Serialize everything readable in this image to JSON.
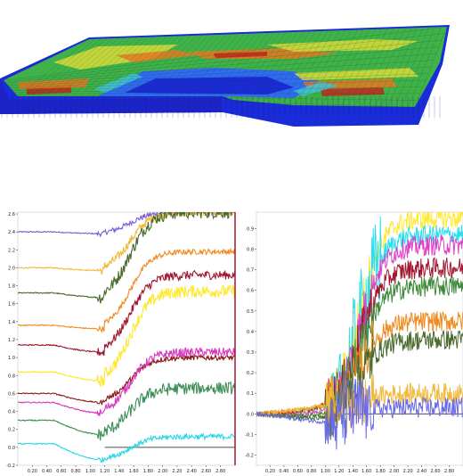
{
  "model_view": {
    "colors": {
      "deep": "#1a2bd8",
      "low": "#2f6cf0",
      "cyan": "#3fc3d8",
      "green": "#3fb24a",
      "yellow": "#d7d93a",
      "orange": "#e07a22",
      "red": "#c0281e"
    }
  },
  "chart_data": [
    {
      "type": "line",
      "title": "",
      "xlabel": "",
      "ylabel": "",
      "xlim": [
        0.0,
        3.0
      ],
      "ylim": [
        -0.2,
        2.62
      ],
      "y_tick_labels": [
        "2.6",
        "2.4",
        "2.2",
        "2.0",
        "1.8",
        "1.6",
        "1.4",
        "1.2",
        "1.0",
        "0.8",
        "0.6",
        "0.4",
        "0.2",
        "0.0",
        "-0.2"
      ],
      "x_tick_labels": [
        "0.20",
        "0.40",
        "0.60",
        "0.80",
        "1.00",
        "1.20",
        "1.40",
        "1.60",
        "1.80",
        "2.00",
        "2.20",
        "2.40",
        "2.60",
        "2.80"
      ],
      "series_shape": "step near x=1.2: flat baseline, dip, then rise to a plateau",
      "series": [
        {
          "color": "#7b5cd6",
          "start": 2.4,
          "dip": 0.02,
          "end": 2.62
        },
        {
          "color": "#f0b93a",
          "start": 2.0,
          "dip": 0.03,
          "end": 2.62
        },
        {
          "color": "#4a6a2c",
          "start": 1.72,
          "dip": 0.05,
          "end": 2.62
        },
        {
          "color": "#f08a1e",
          "start": 1.36,
          "dip": 0.04,
          "end": 2.18
        },
        {
          "color": "#a01830",
          "start": 1.14,
          "dip": 0.08,
          "end": 1.92
        },
        {
          "color": "#ffe82a",
          "start": 0.84,
          "dip": 0.1,
          "end": 1.74
        },
        {
          "color": "#8a1818",
          "start": 0.6,
          "dip": 0.1,
          "end": 1.0
        },
        {
          "color": "#d838c0",
          "start": 0.5,
          "dip": 0.12,
          "end": 1.06
        },
        {
          "color": "#3f8f58",
          "start": 0.3,
          "dip": 0.16,
          "end": 0.66
        },
        {
          "color": "#2ad8e6",
          "start": 0.04,
          "dip": 0.18,
          "end": 0.12
        }
      ],
      "right_edge_line_color": "#a01830"
    },
    {
      "type": "line",
      "title": "",
      "xlabel": "",
      "ylabel": "",
      "xlim": [
        0.0,
        3.0
      ],
      "ylim": [
        -0.25,
        0.98
      ],
      "y_tick_labels": [
        "0.9",
        "0.8",
        "0.7",
        "0.6",
        "0.5",
        "0.4",
        "0.3",
        "0.2",
        "0.1",
        "0.0",
        "-0.1",
        "-0.2"
      ],
      "x_tick_labels": [
        "0.20",
        "0.40",
        "0.60",
        "0.80",
        "1.00",
        "1.20",
        "1.40",
        "1.60",
        "1.80",
        "2.00",
        "2.20",
        "2.40",
        "2.60",
        "2.80"
      ],
      "series_shape": "noisy S-curve rising after x=1.2",
      "series": [
        {
          "color": "#ffe82a",
          "end": 0.95
        },
        {
          "color": "#2ae0ee",
          "end": 0.87
        },
        {
          "color": "#e040c8",
          "end": 0.82
        },
        {
          "color": "#a01830",
          "end": 0.71
        },
        {
          "color": "#3f8a3a",
          "end": 0.62
        },
        {
          "color": "#f08a1e",
          "end": 0.45
        },
        {
          "color": "#4a6a2c",
          "end": 0.36
        },
        {
          "color": "#f0b93a",
          "end": 0.1
        },
        {
          "color": "#6a6ae6",
          "end": 0.03
        }
      ]
    }
  ]
}
